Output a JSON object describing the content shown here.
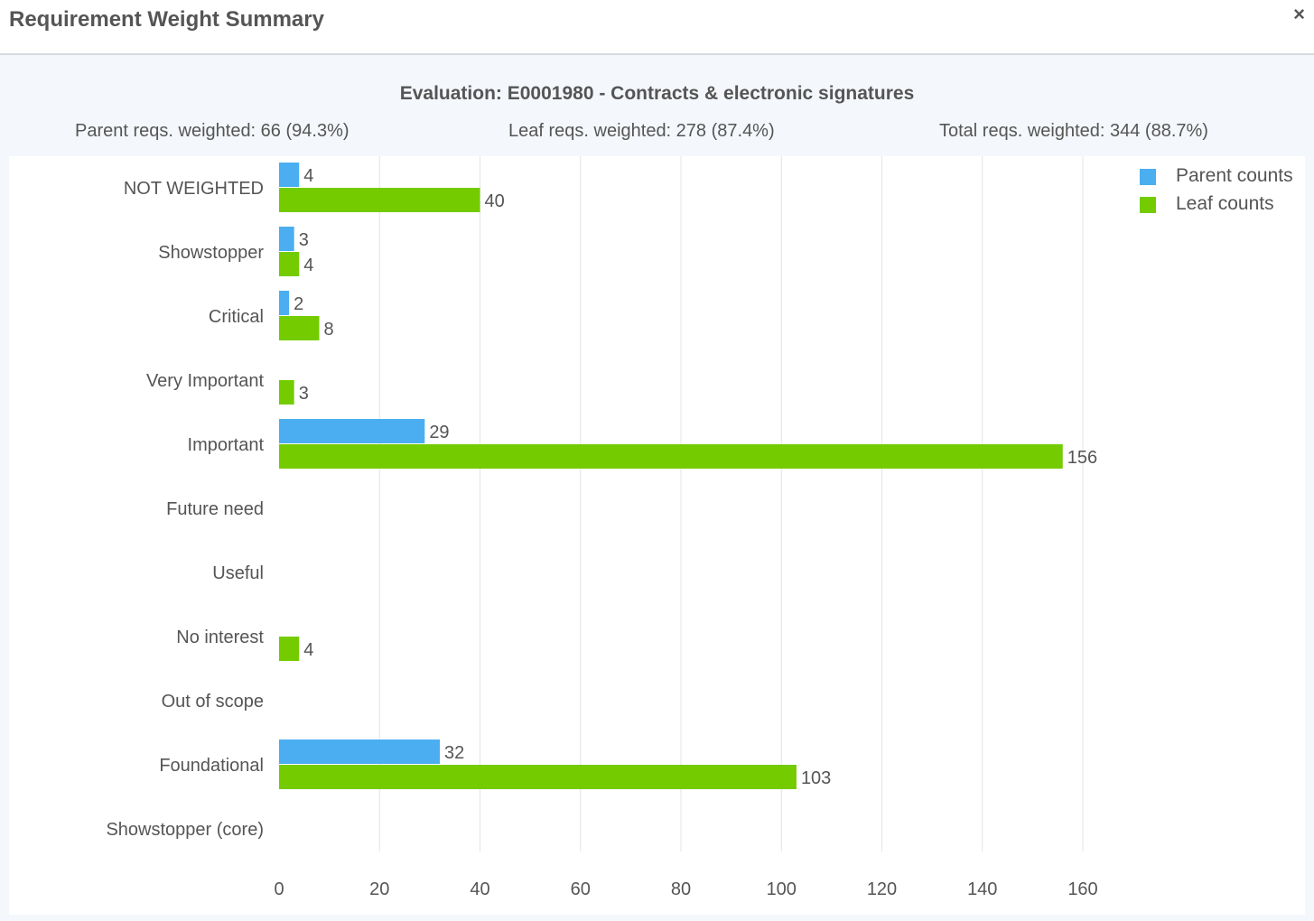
{
  "dialog": {
    "title": "Requirement Weight Summary",
    "close_label": "×"
  },
  "summary": {
    "evaluation": "Evaluation: E0001980 - Contracts & electronic signatures",
    "parent_stat": "Parent reqs. weighted: 66 (94.3%)",
    "leaf_stat": "Leaf reqs. weighted: 278 (87.4%)",
    "total_stat": "Total reqs. weighted: 344 (88.7%)"
  },
  "colors": {
    "parent": "#4aaef1",
    "leaf": "#74cc00",
    "grid": "#e4e4e4"
  },
  "chart_data": {
    "type": "bar",
    "orientation": "horizontal",
    "categories": [
      "NOT WEIGHTED",
      "Showstopper",
      "Critical",
      "Very Important",
      "Important",
      "Future need",
      "Useful",
      "No interest",
      "Out of scope",
      "Foundational",
      "Showstopper (core)"
    ],
    "series": [
      {
        "name": "Parent counts",
        "values": [
          4,
          3,
          2,
          null,
          29,
          null,
          null,
          null,
          null,
          32,
          null
        ]
      },
      {
        "name": "Leaf counts",
        "values": [
          40,
          4,
          8,
          3,
          156,
          null,
          null,
          4,
          null,
          103,
          null
        ]
      }
    ],
    "xticks": [
      0,
      20,
      40,
      60,
      80,
      100,
      120,
      140,
      160
    ],
    "xlim": [
      0,
      160
    ],
    "grid": true,
    "legend_position": "top-right",
    "data_labels": true
  }
}
